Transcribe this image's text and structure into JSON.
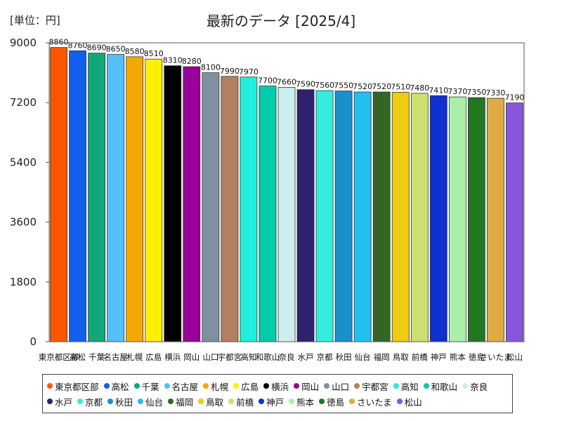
{
  "header": {
    "unit_label": "[単位：円]",
    "title": "最新のデータ [2025/4]"
  },
  "chart_data": {
    "type": "bar",
    "title": "最新のデータ [2025/4]",
    "unit": "[単位：円]",
    "ylim": [
      0,
      9000
    ],
    "yticks": [
      0,
      1800,
      3600,
      5400,
      7200,
      9000
    ],
    "grid": false,
    "legend_position": "bottom",
    "categories": [
      "東京都区部",
      "高松",
      "千葉",
      "名古屋",
      "札幌",
      "広島",
      "横浜",
      "岡山",
      "山口",
      "宇都宮",
      "高知",
      "和歌山",
      "奈良",
      "水戸",
      "京都",
      "秋田",
      "仙台",
      "福岡",
      "鳥取",
      "前橋",
      "神戸",
      "熊本",
      "徳島",
      "さいたま",
      "松山"
    ],
    "values": [
      8860,
      8760,
      8690,
      8650,
      8580,
      8510,
      8310,
      8280,
      8100,
      7990,
      7970,
      7700,
      7660,
      7590,
      7560,
      7550,
      7520,
      7520,
      7510,
      7480,
      7410,
      7370,
      7350,
      7330,
      7190
    ],
    "value_labels": [
      "8860",
      "8760",
      "8690",
      "8650",
      "8580",
      "8510",
      "8310",
      "8280",
      "8100",
      "7990",
      "7970",
      "7700",
      "7660",
      "7590",
      "7560",
      "7550",
      "7520",
      "7520",
      "7510",
      "7480",
      "7410",
      "7370",
      "7350",
      "7330",
      "7190"
    ],
    "colors": [
      "#ff5500",
      "#1060ee",
      "#10a878",
      "#55c0ff",
      "#f5a800",
      "#fff000",
      "#000000",
      "#990099",
      "#8090a0",
      "#b08060",
      "#22eedd",
      "#00ccaa",
      "#cceeee",
      "#302070",
      "#33eedd",
      "#1890cc",
      "#22c0ee",
      "#336622",
      "#eecc11",
      "#cce070",
      "#1030d0",
      "#aaeeaa",
      "#227722",
      "#e0aa44",
      "#8855dd"
    ]
  }
}
